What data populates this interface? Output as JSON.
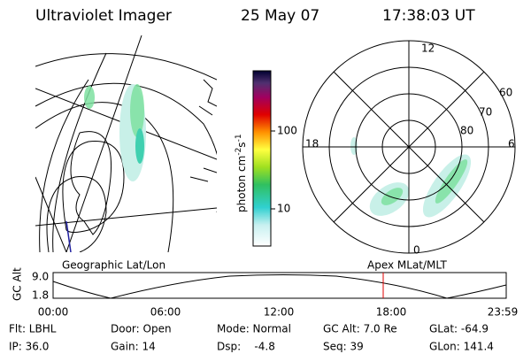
{
  "header": {
    "title": "Ultraviolet Imager",
    "date": "25 May 07",
    "time": "17:38:03 UT"
  },
  "colorbar": {
    "label": [
      "photon cm",
      "-2",
      "s",
      "-1"
    ],
    "ticks": [
      "100",
      "10"
    ]
  },
  "polar": {
    "mlt_labels": [
      "12",
      "18",
      "6",
      "0"
    ],
    "lat_labels": [
      "60",
      "70",
      "80"
    ]
  },
  "altitude": {
    "axis_label": "GC Alt",
    "ticks": [
      "9.0",
      "1.8"
    ],
    "left_label": "Geographic Lat/Lon",
    "right_label": "Apex MLat/MLT",
    "time_labels": [
      "00:00",
      "06:00",
      "12:00",
      "18:00",
      "23:59"
    ]
  },
  "info": {
    "rows": [
      [
        "Flt: LBHL",
        "Door: Open",
        "Mode: Normal",
        "GC Alt: 7.0 Re",
        "GLat: -64.9"
      ],
      [
        "IP: 36.0",
        "Gain: 14",
        "Dsp:    -4.8",
        "Seq: 39",
        "GLon: 141.4"
      ]
    ]
  }
}
